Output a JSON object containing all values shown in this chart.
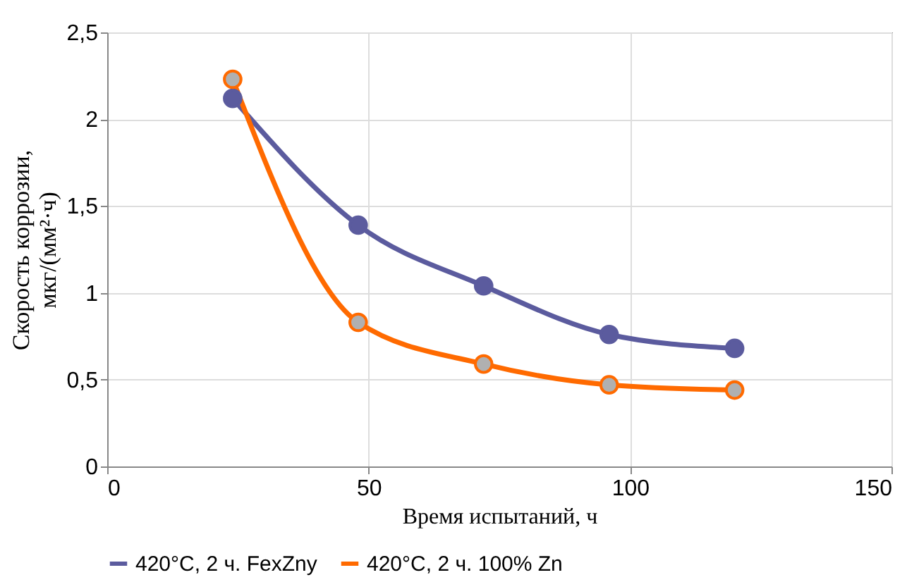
{
  "chart_data": {
    "type": "line",
    "xlabel": "Время испытаний, ч",
    "ylabel": "Скорость коррозии, мкг/(мм²·ч)",
    "x": [
      24,
      48,
      72,
      96,
      120
    ],
    "series": [
      {
        "name": "420°C, 2 ч. FexZny",
        "color": "#5b5b9e",
        "values": [
          2.12,
          1.39,
          1.04,
          0.76,
          0.68
        ]
      },
      {
        "name": "420°C, 2 ч. 100% Zn",
        "color": "#ff6a00",
        "values": [
          2.23,
          0.83,
          0.59,
          0.47,
          0.44
        ]
      }
    ],
    "xlim": [
      0,
      150
    ],
    "xticks": [
      0,
      50,
      100,
      150
    ],
    "ylim": [
      0,
      2.5
    ],
    "yticks": [
      0,
      {
        "value": 0.5,
        "label": "0,5"
      },
      1,
      {
        "value": 1.5,
        "label": "1,5"
      },
      2,
      {
        "value": 2.5,
        "label": "2,5"
      }
    ],
    "grid": true,
    "legend": "bottom",
    "marker": "circle",
    "line_style": "solid"
  }
}
